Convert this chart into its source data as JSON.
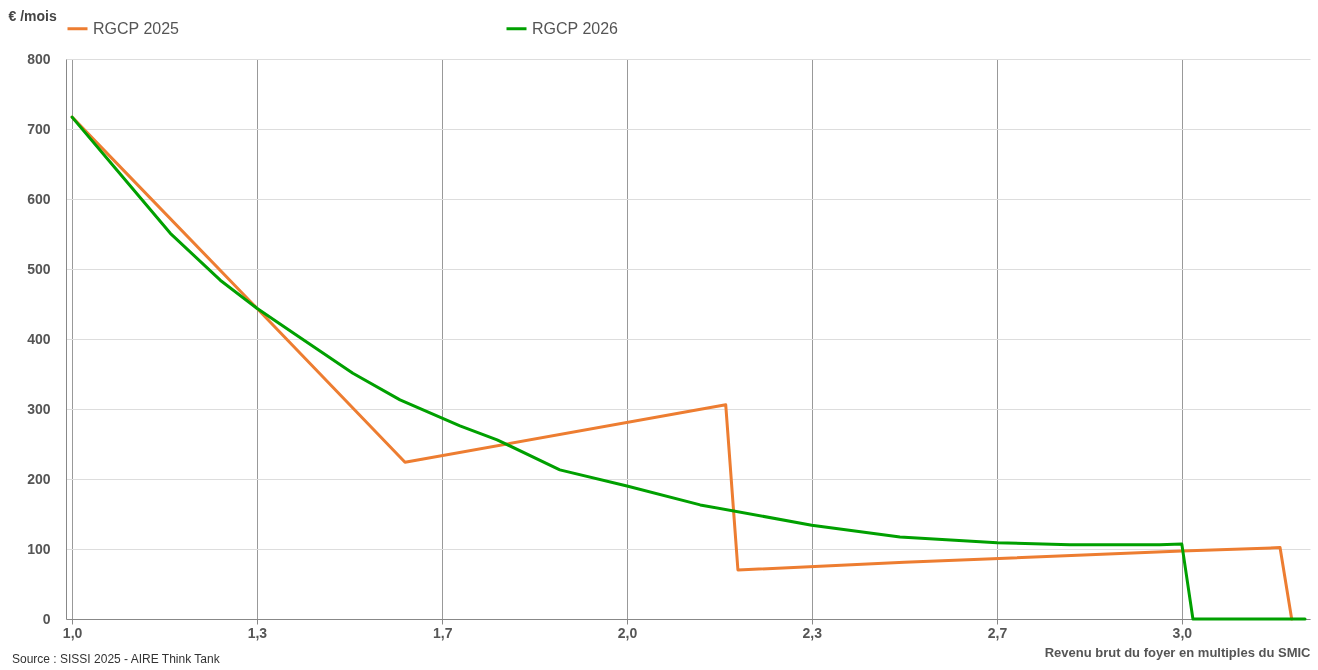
{
  "chart_data": {
    "type": "line",
    "ylabel": "€ /mois",
    "xlabel": "Revenu brut du foyer en multiples du SMIC",
    "annotations": [
      "Source : SISSI 2025 - AIRE Think Tank"
    ],
    "xlim": [
      0.989,
      3.231
    ],
    "ylim": [
      0,
      800
    ],
    "xticks": [
      {
        "value": 1,
        "label": "1,0"
      },
      {
        "value": 1.333,
        "label": "1,3"
      },
      {
        "value": 1.667,
        "label": "1,7"
      },
      {
        "value": 2,
        "label": "2,0"
      },
      {
        "value": 2.333,
        "label": "2,3"
      },
      {
        "value": 2.667,
        "label": "2,7"
      },
      {
        "value": 3,
        "label": "3,0"
      }
    ],
    "yticks": [
      0,
      100,
      200,
      300,
      400,
      500,
      600,
      700,
      800
    ],
    "grid": true,
    "legend": "top",
    "marker": "none",
    "line_style": "solid",
    "series": [
      {
        "name": "RGCP 2025",
        "color": "#ed7d31",
        "x": [
          1,
          1.333,
          1.6,
          2.178,
          2.2,
          2.5,
          3,
          3.177,
          3.198
        ],
        "values": [
          717,
          444,
          224,
          306,
          70,
          81,
          97,
          102,
          0
        ]
      },
      {
        "name": "RGCP 2026",
        "color": "#00a000",
        "x": [
          1,
          1.081,
          1.177,
          1.267,
          1.333,
          1.398,
          1.506,
          1.591,
          1.699,
          1.766,
          1.879,
          2,
          2.132,
          2.333,
          2.492,
          2.667,
          2.798,
          2.96,
          3,
          3.02,
          3.222
        ],
        "values": [
          717,
          641,
          551,
          484,
          444,
          409,
          351,
          313,
          276,
          256,
          213,
          190,
          163,
          134,
          117,
          109,
          106,
          106,
          107,
          0,
          0
        ]
      }
    ]
  }
}
